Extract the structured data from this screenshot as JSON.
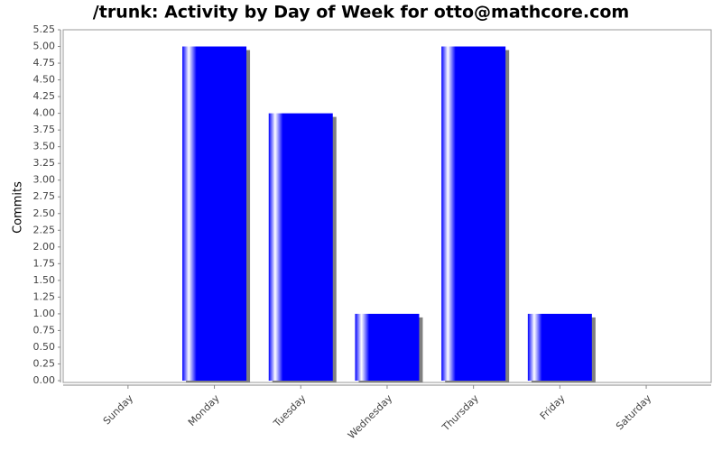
{
  "chart_data": {
    "type": "bar",
    "title": "/trunk: Activity by Day of Week for otto@mathcore.com",
    "y_label": "Commits",
    "categories": [
      "Sunday",
      "Monday",
      "Tuesday",
      "Wednesday",
      "Thursday",
      "Friday",
      "Saturday"
    ],
    "values": [
      0,
      5,
      4,
      1,
      5,
      1,
      0
    ],
    "color": "#0000ff",
    "ylim": [
      0,
      5.25
    ],
    "yticks": [
      {
        "value": 0,
        "label": "0.00"
      },
      {
        "value": 0.25,
        "label": "0.25"
      },
      {
        "value": 0.5,
        "label": "0.50"
      },
      {
        "value": 0.75,
        "label": "0.75"
      },
      {
        "value": 1,
        "label": "1.00"
      },
      {
        "value": 1.25,
        "label": "1.25"
      },
      {
        "value": 1.5,
        "label": "1.50"
      },
      {
        "value": 1.75,
        "label": "1.75"
      },
      {
        "value": 2,
        "label": "2.00"
      },
      {
        "value": 2.25,
        "label": "2.25"
      },
      {
        "value": 2.5,
        "label": "2.50"
      },
      {
        "value": 2.75,
        "label": "2.75"
      },
      {
        "value": 3,
        "label": "3.00"
      },
      {
        "value": 3.25,
        "label": "3.25"
      },
      {
        "value": 3.5,
        "label": "3.50"
      },
      {
        "value": 3.75,
        "label": "3.75"
      },
      {
        "value": 4,
        "label": "4.00"
      },
      {
        "value": 4.25,
        "label": "4.25"
      },
      {
        "value": 4.5,
        "label": "4.50"
      },
      {
        "value": 4.75,
        "label": "4.75"
      },
      {
        "value": 5,
        "label": "5.00"
      },
      {
        "value": 5.25,
        "label": "5.25"
      }
    ],
    "grid": false
  }
}
